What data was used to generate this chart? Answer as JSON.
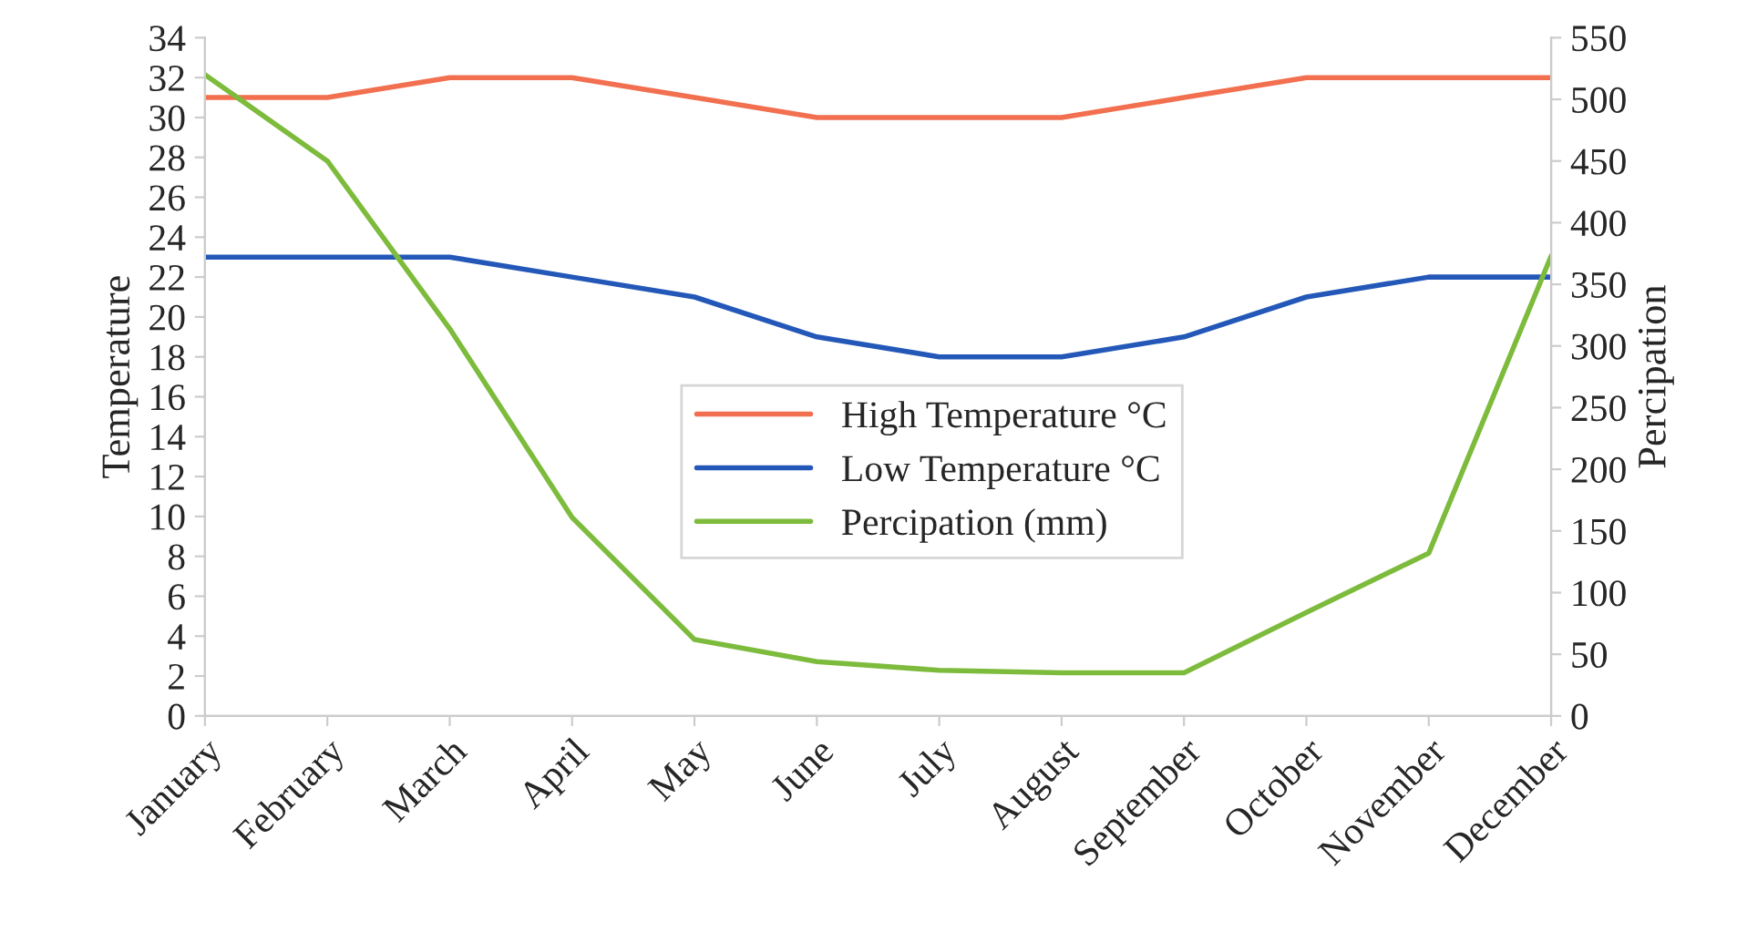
{
  "chart_data": {
    "type": "line",
    "categories": [
      "January",
      "February",
      "March",
      "April",
      "May",
      "June",
      "July",
      "August",
      "September",
      "October",
      "November",
      "December"
    ],
    "series": [
      {
        "name": "High Temperature °C",
        "color": "#f26f4f",
        "values": [
          31,
          31,
          32,
          32,
          31,
          30,
          30,
          30,
          31,
          32,
          32,
          32
        ]
      },
      {
        "name": "Low Temperature °C",
        "color": "#2458b8",
        "values": [
          23,
          23,
          23,
          22,
          21,
          19,
          18,
          18,
          19,
          21,
          22,
          22
        ]
      },
      {
        "name": "Percipation (mm)",
        "color": "#7dbb3c",
        "axis": "y2",
        "values": [
          520,
          450,
          314,
          161,
          62,
          44,
          37,
          35,
          35,
          84,
          132,
          373
        ]
      }
    ],
    "ylabel": "Temperature",
    "y2label": "Percipation",
    "ylim": [
      0,
      34
    ],
    "yticks": [
      0,
      2,
      4,
      6,
      8,
      10,
      12,
      14,
      16,
      18,
      20,
      22,
      24,
      26,
      28,
      30,
      32,
      34
    ],
    "y2lim": [
      0,
      550
    ],
    "y2ticks": [
      0,
      50,
      100,
      150,
      200,
      250,
      300,
      350,
      400,
      450,
      500,
      550
    ],
    "legend": "center",
    "grid": false,
    "marker": "none",
    "line_style": "solid"
  }
}
